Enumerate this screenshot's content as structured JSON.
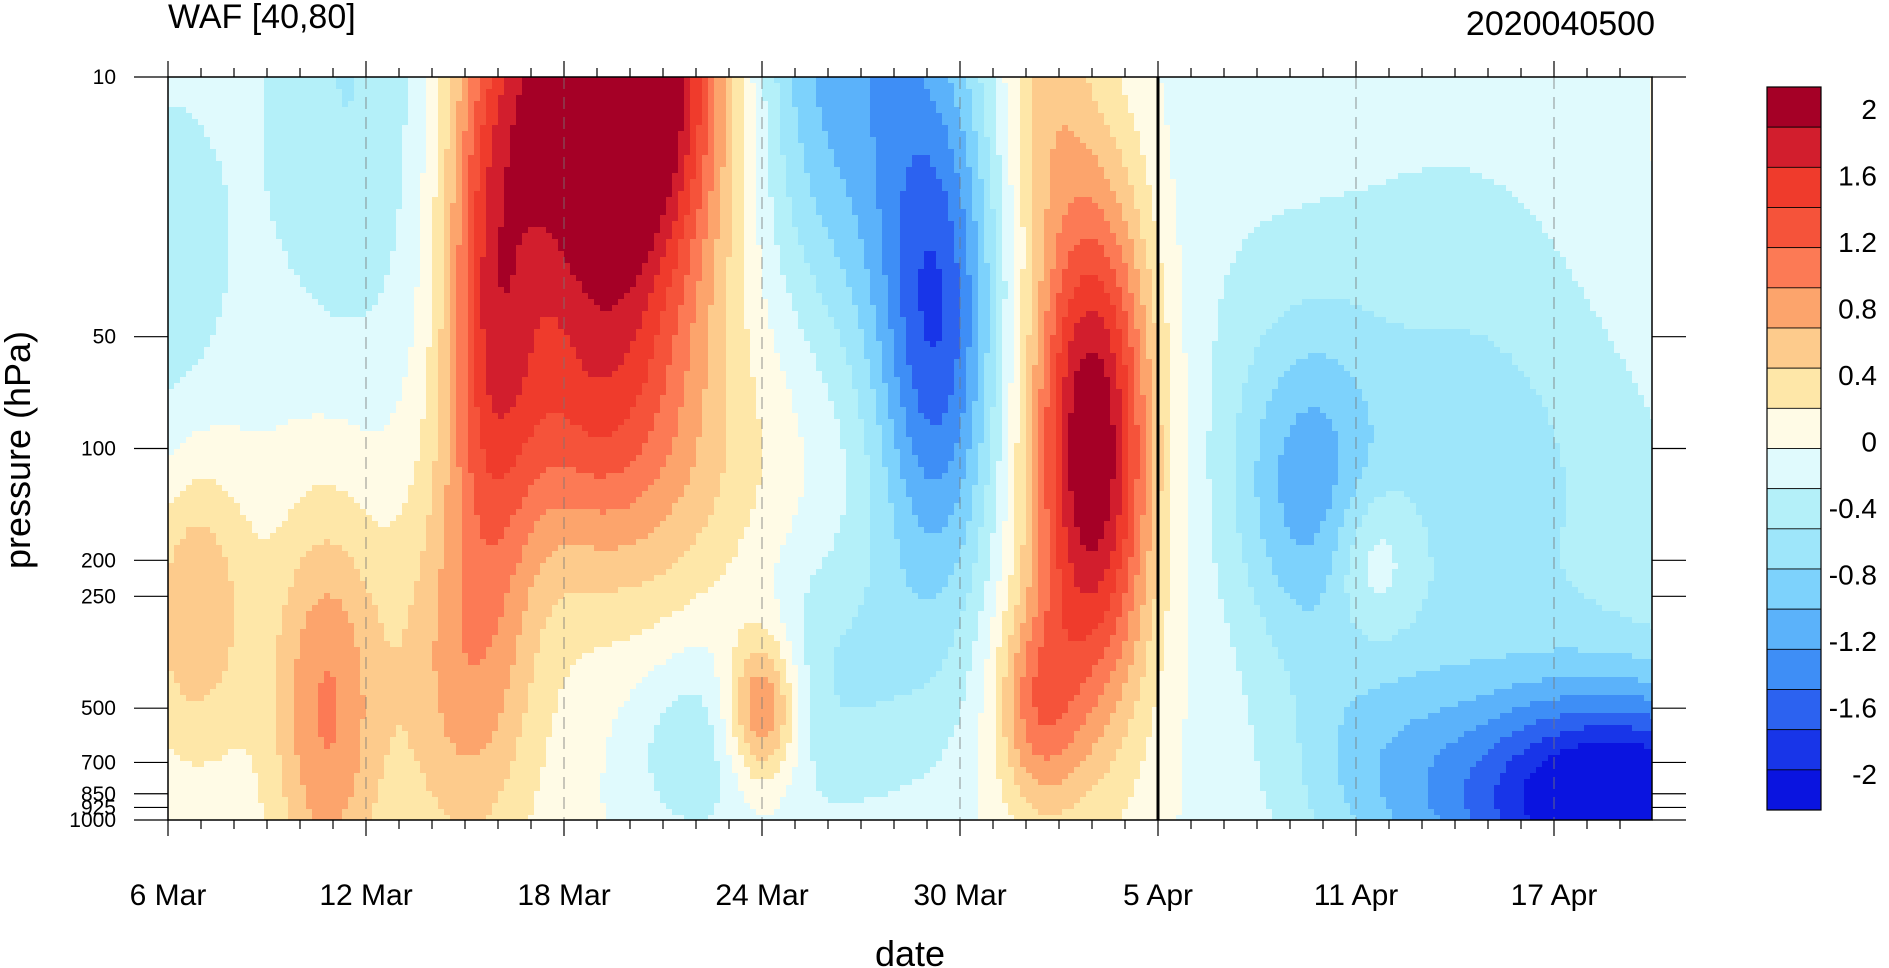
{
  "chart_data": {
    "type": "heatmap",
    "title": "WAF [40,80]",
    "subtitle": "2020040500",
    "xlabel": "date",
    "ylabel": "pressure (hPa)",
    "x_ticks": [
      "6 Mar",
      "12 Mar",
      "18 Mar",
      "24 Mar",
      "30 Mar",
      "5 Apr",
      "11 Apr",
      "17 Apr"
    ],
    "y_ticks": [
      "10",
      "50",
      "100",
      "200",
      "250",
      "500",
      "700",
      "850",
      "925",
      "1000"
    ],
    "y_scale": "log",
    "colorbar_labels": [
      "2",
      "1.6",
      "1.2",
      "0.8",
      "0.4",
      "0",
      "-0.4",
      "-0.8",
      "-1.2",
      "-1.6",
      "-2"
    ],
    "colorbar_colors": [
      "#a50026",
      "#d21e2d",
      "#ef3b2c",
      "#f5533a",
      "#fc7a55",
      "#fca46c",
      "#fdcb8c",
      "#fee7a8",
      "#fffbe6",
      "#e0fafd",
      "#b4f0f9",
      "#9ee6fa",
      "#7dd2fc",
      "#5bb2fa",
      "#3e8ef6",
      "#2c62f0",
      "#1835e8",
      "#0a14e0"
    ],
    "data_extent_note": "",
    "reference_line": "5 Apr"
  }
}
